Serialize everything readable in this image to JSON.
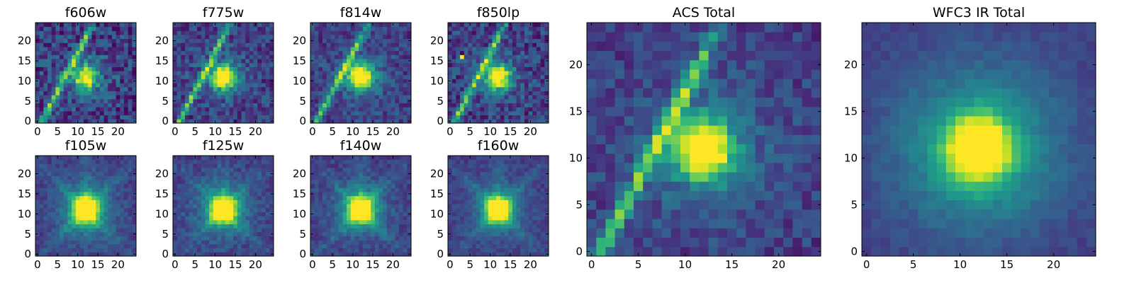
{
  "chart_data": [
    {
      "type": "heatmap",
      "title": "f606w",
      "pattern": "streak",
      "noise": 0.34,
      "core": 0.85,
      "spread": 0.1,
      "xlim": [
        0,
        24
      ],
      "ylim": [
        0,
        24
      ],
      "xticks": [
        0,
        5,
        10,
        15,
        20
      ],
      "yticks": [
        0,
        5,
        10,
        15,
        20
      ],
      "xlabel": "",
      "ylabel": "",
      "colormap": "viridis"
    },
    {
      "type": "heatmap",
      "title": "f775w",
      "pattern": "streak",
      "noise": 0.28,
      "core": 0.9,
      "spread": 0.12,
      "xlim": [
        0,
        24
      ],
      "ylim": [
        0,
        24
      ],
      "xticks": [
        0,
        5,
        10,
        15,
        20
      ],
      "yticks": [
        0,
        5,
        10,
        15,
        20
      ],
      "xlabel": "",
      "ylabel": "",
      "colormap": "viridis"
    },
    {
      "type": "heatmap",
      "title": "f814w",
      "pattern": "streak",
      "noise": 0.24,
      "core": 0.92,
      "spread": 0.16,
      "xlim": [
        0,
        24
      ],
      "ylim": [
        0,
        24
      ],
      "xticks": [
        0,
        5,
        10,
        15,
        20
      ],
      "yticks": [
        0,
        5,
        10,
        15,
        20
      ],
      "xlabel": "",
      "ylabel": "",
      "colormap": "viridis"
    },
    {
      "type": "heatmap",
      "title": "f850lp",
      "pattern": "streak",
      "noise": 0.3,
      "core": 0.9,
      "spread": 0.12,
      "xlim": [
        0,
        24
      ],
      "ylim": [
        0,
        24
      ],
      "xticks": [
        0,
        5,
        10,
        15,
        20
      ],
      "yticks": [
        0,
        5,
        10,
        15,
        20
      ],
      "xlabel": "",
      "ylabel": "",
      "colormap": "viridis",
      "hot_pixel": [
        3,
        16
      ]
    },
    {
      "type": "heatmap",
      "title": "f105w",
      "pattern": "cross",
      "noise": 0.14,
      "core": 0.95,
      "spread": 0.3,
      "xlim": [
        0,
        24
      ],
      "ylim": [
        0,
        24
      ],
      "xticks": [
        0,
        5,
        10,
        15,
        20
      ],
      "yticks": [
        0,
        5,
        10,
        15,
        20
      ],
      "xlabel": "",
      "ylabel": "",
      "colormap": "viridis"
    },
    {
      "type": "heatmap",
      "title": "f125w",
      "pattern": "cross",
      "noise": 0.16,
      "core": 0.95,
      "spread": 0.28,
      "xlim": [
        0,
        24
      ],
      "ylim": [
        0,
        24
      ],
      "xticks": [
        0,
        5,
        10,
        15,
        20
      ],
      "yticks": [
        0,
        5,
        10,
        15,
        20
      ],
      "xlabel": "",
      "ylabel": "",
      "colormap": "viridis"
    },
    {
      "type": "heatmap",
      "title": "f140w",
      "pattern": "cross",
      "noise": 0.15,
      "core": 0.95,
      "spread": 0.26,
      "xlim": [
        0,
        24
      ],
      "ylim": [
        0,
        24
      ],
      "xticks": [
        0,
        5,
        10,
        15,
        20
      ],
      "yticks": [
        0,
        5,
        10,
        15,
        20
      ],
      "xlabel": "",
      "ylabel": "",
      "colormap": "viridis"
    },
    {
      "type": "heatmap",
      "title": "f160w",
      "pattern": "cross",
      "noise": 0.12,
      "core": 0.95,
      "spread": 0.22,
      "xlim": [
        0,
        24
      ],
      "ylim": [
        0,
        24
      ],
      "xticks": [
        0,
        5,
        10,
        15,
        20
      ],
      "yticks": [
        0,
        5,
        10,
        15,
        20
      ],
      "xlabel": "",
      "ylabel": "",
      "colormap": "viridis"
    },
    {
      "type": "heatmap",
      "title": "ACS Total",
      "pattern": "streak",
      "noise": 0.2,
      "core": 0.95,
      "spread": 0.2,
      "xlim": [
        0,
        24
      ],
      "ylim": [
        0,
        24
      ],
      "xticks": [
        0,
        5,
        10,
        15,
        20
      ],
      "yticks": [
        0,
        5,
        10,
        15,
        20
      ],
      "xlabel": "",
      "ylabel": "",
      "colormap": "viridis"
    },
    {
      "type": "heatmap",
      "title": "WFC3 IR Total",
      "pattern": "smooth",
      "noise": 0.08,
      "core": 0.95,
      "spread": 0.34,
      "xlim": [
        0,
        24
      ],
      "ylim": [
        0,
        24
      ],
      "xticks": [
        0,
        5,
        10,
        15,
        20
      ],
      "yticks": [
        0,
        5,
        10,
        15,
        20
      ],
      "xlabel": "",
      "ylabel": "",
      "colormap": "viridis"
    }
  ]
}
